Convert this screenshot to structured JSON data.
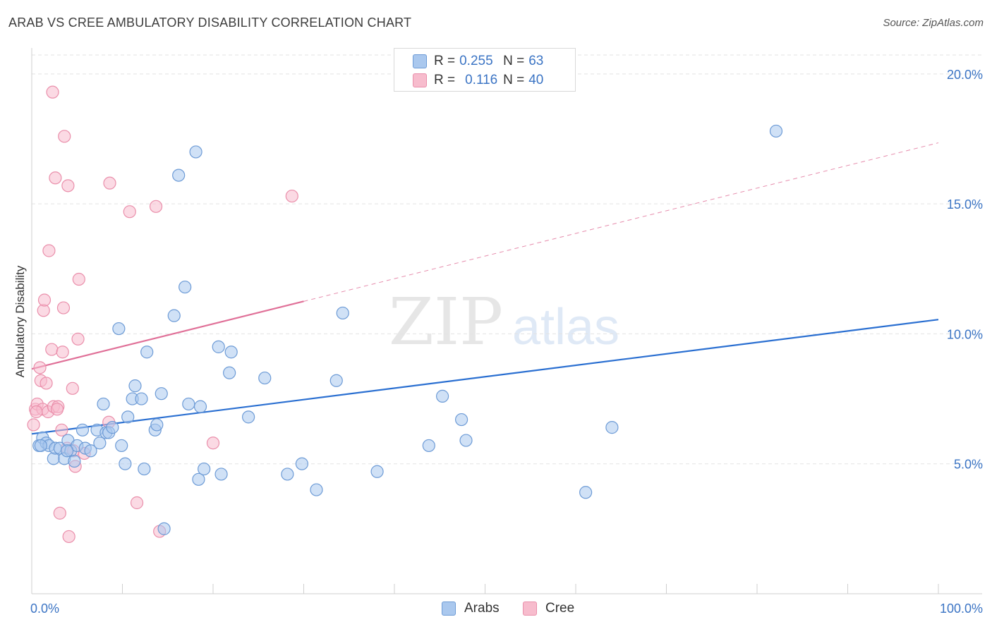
{
  "title": "ARAB VS CREE AMBULATORY DISABILITY CORRELATION CHART",
  "source": "Source: ZipAtlas.com",
  "watermark": {
    "zip": "ZIP",
    "atlas": "atlas"
  },
  "legend_stats": [
    {
      "r_label": "R =",
      "r_value": "0.255",
      "n_label": "N =",
      "n_value": "63"
    },
    {
      "r_label": "R =",
      "r_value": "0.116",
      "n_label": "N =",
      "n_value": "40"
    }
  ],
  "colors": {
    "arabs_fill": "#aac8ee",
    "arabs_stroke": "#6d9bd6",
    "arabs_line": "#2a6fd1",
    "cree_fill": "#f7bccd",
    "cree_stroke": "#ea8fab",
    "cree_line": "#e07098",
    "axis_label": "#3b74c4",
    "grid": "#e3e3e3"
  },
  "chart_data": {
    "type": "scatter",
    "title": "ARAB VS CREE AMBULATORY DISABILITY CORRELATION CHART",
    "xlabel": "",
    "ylabel": "Ambulatory Disability",
    "xlim": [
      0,
      100
    ],
    "ylim": [
      0,
      21
    ],
    "x_tick_labels": [
      "0.0%",
      "100.0%"
    ],
    "y_ticks": [
      5,
      10,
      15,
      20
    ],
    "y_tick_labels": [
      "5.0%",
      "10.0%",
      "15.0%",
      "20.0%"
    ],
    "legend": [
      "Arabs",
      "Cree"
    ],
    "series": [
      {
        "name": "Arabs",
        "r": 0.255,
        "n": 63,
        "trend": {
          "x0": 0,
          "y0": 6.15,
          "x1": 100,
          "y1": 10.55
        },
        "points": [
          [
            0.8,
            5.7
          ],
          [
            1.2,
            6.0
          ],
          [
            1.6,
            5.8
          ],
          [
            1.9,
            5.7
          ],
          [
            2.4,
            5.2
          ],
          [
            2.6,
            5.6
          ],
          [
            3.1,
            5.6
          ],
          [
            3.6,
            5.2
          ],
          [
            4.0,
            5.9
          ],
          [
            4.3,
            5.5
          ],
          [
            4.7,
            5.1
          ],
          [
            5.0,
            5.7
          ],
          [
            5.6,
            6.3
          ],
          [
            5.9,
            5.6
          ],
          [
            6.5,
            5.5
          ],
          [
            7.2,
            6.3
          ],
          [
            7.5,
            5.8
          ],
          [
            7.9,
            7.3
          ],
          [
            8.2,
            6.2
          ],
          [
            8.5,
            6.2
          ],
          [
            8.9,
            6.4
          ],
          [
            9.6,
            10.2
          ],
          [
            9.9,
            5.7
          ],
          [
            10.3,
            5.0
          ],
          [
            10.6,
            6.8
          ],
          [
            11.1,
            7.5
          ],
          [
            11.4,
            8.0
          ],
          [
            12.1,
            7.5
          ],
          [
            12.4,
            4.8
          ],
          [
            12.7,
            9.3
          ],
          [
            13.6,
            6.3
          ],
          [
            13.8,
            6.5
          ],
          [
            14.3,
            7.7
          ],
          [
            14.6,
            2.5
          ],
          [
            15.7,
            10.7
          ],
          [
            16.2,
            16.1
          ],
          [
            16.9,
            11.8
          ],
          [
            17.3,
            7.3
          ],
          [
            18.1,
            17.0
          ],
          [
            18.4,
            4.4
          ],
          [
            18.6,
            7.2
          ],
          [
            19.0,
            4.8
          ],
          [
            20.6,
            9.5
          ],
          [
            20.9,
            4.6
          ],
          [
            21.8,
            8.5
          ],
          [
            22.0,
            9.3
          ],
          [
            23.9,
            6.8
          ],
          [
            25.7,
            8.3
          ],
          [
            28.2,
            4.6
          ],
          [
            29.8,
            5.0
          ],
          [
            31.4,
            4.0
          ],
          [
            33.6,
            8.2
          ],
          [
            34.3,
            10.8
          ],
          [
            38.1,
            4.7
          ],
          [
            43.8,
            5.7
          ],
          [
            45.3,
            7.6
          ],
          [
            47.4,
            6.7
          ],
          [
            47.9,
            5.9
          ],
          [
            61.1,
            3.9
          ],
          [
            64.0,
            6.4
          ],
          [
            82.1,
            17.8
          ],
          [
            1.0,
            5.7
          ],
          [
            3.9,
            5.5
          ]
        ]
      },
      {
        "name": "Cree",
        "r": 0.116,
        "n": 40,
        "trend": {
          "x0": 0,
          "y0": 8.65,
          "x1": 30,
          "y1": 11.25
        },
        "trend_extension": {
          "x0": 30,
          "y0": 11.25,
          "x1": 100,
          "y1": 17.35
        },
        "points": [
          [
            0.2,
            6.5
          ],
          [
            0.4,
            7.1
          ],
          [
            0.6,
            7.3
          ],
          [
            0.9,
            8.7
          ],
          [
            1.0,
            8.2
          ],
          [
            1.2,
            7.1
          ],
          [
            1.3,
            10.9
          ],
          [
            1.4,
            11.3
          ],
          [
            1.6,
            8.1
          ],
          [
            1.8,
            7.0
          ],
          [
            1.9,
            13.2
          ],
          [
            2.2,
            9.4
          ],
          [
            2.3,
            19.3
          ],
          [
            2.4,
            7.2
          ],
          [
            2.6,
            16.0
          ],
          [
            2.9,
            7.2
          ],
          [
            3.1,
            3.1
          ],
          [
            3.3,
            6.3
          ],
          [
            3.4,
            9.3
          ],
          [
            3.5,
            11.0
          ],
          [
            3.6,
            17.6
          ],
          [
            3.9,
            5.6
          ],
          [
            4.0,
            15.7
          ],
          [
            4.1,
            2.2
          ],
          [
            4.5,
            7.9
          ],
          [
            4.6,
            5.5
          ],
          [
            4.8,
            4.9
          ],
          [
            5.1,
            9.8
          ],
          [
            5.2,
            12.1
          ],
          [
            5.8,
            5.4
          ],
          [
            8.5,
            6.6
          ],
          [
            8.6,
            15.8
          ],
          [
            10.8,
            14.7
          ],
          [
            11.6,
            3.5
          ],
          [
            13.7,
            14.9
          ],
          [
            14.1,
            2.4
          ],
          [
            20.0,
            5.8
          ],
          [
            28.7,
            15.3
          ],
          [
            0.5,
            7.0
          ],
          [
            2.8,
            7.1
          ]
        ]
      }
    ]
  }
}
